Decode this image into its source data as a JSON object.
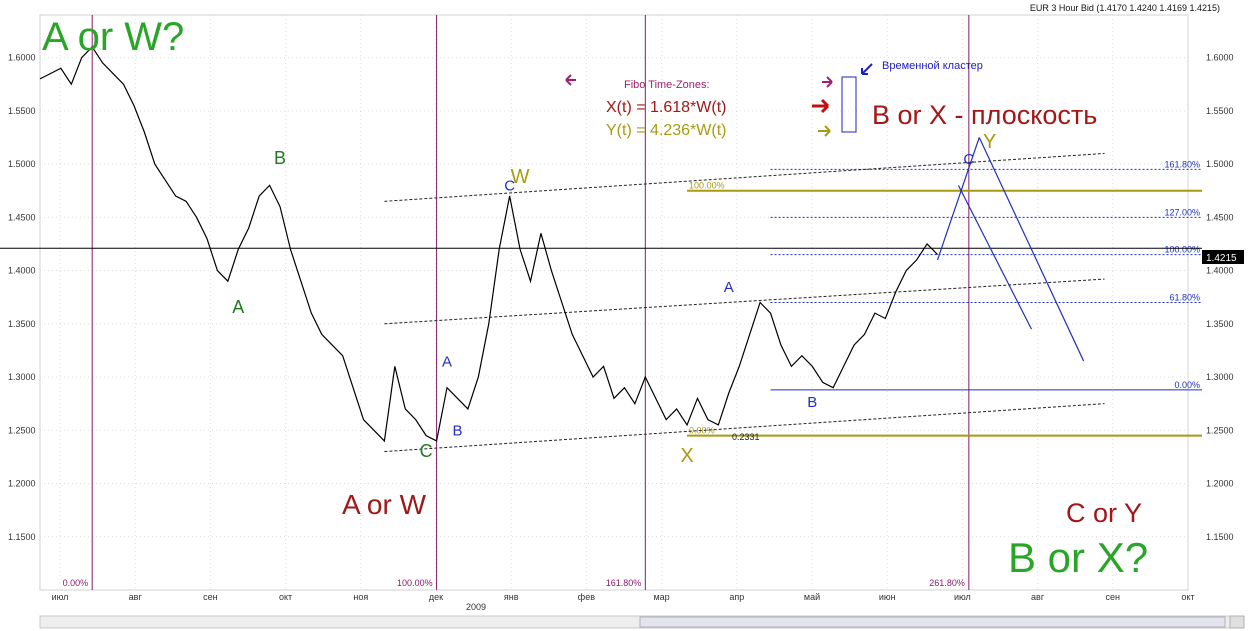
{
  "header": {
    "title": "EUR 3 Hour Bid (1.4170 1.4240 1.4169 1.4215)"
  },
  "chart_data": {
    "type": "line",
    "ylim": [
      1.1,
      1.64
    ],
    "y_ticks": [
      "1.1500",
      "1.2000",
      "1.2500",
      "1.3000",
      "1.3500",
      "1.4000",
      "1.4500",
      "1.5000",
      "1.5500",
      "1.6000"
    ],
    "y_tick_values": [
      1.15,
      1.2,
      1.25,
      1.3,
      1.35,
      1.4,
      1.45,
      1.5,
      1.55,
      1.6
    ],
    "x_months": [
      "июл",
      "авг",
      "сен",
      "окт",
      "ноя",
      "дек",
      "янв",
      "фев",
      "мар",
      "апр",
      "май",
      "июн",
      "июл",
      "авг",
      "сен",
      "окт"
    ],
    "x_year_label": "2009",
    "last_price": "1.4215",
    "price_series": [
      [
        0,
        1.58
      ],
      [
        2,
        1.59
      ],
      [
        3,
        1.575
      ],
      [
        4,
        1.6
      ],
      [
        5,
        1.61
      ],
      [
        6,
        1.595
      ],
      [
        7,
        1.585
      ],
      [
        8,
        1.575
      ],
      [
        9,
        1.555
      ],
      [
        10,
        1.53
      ],
      [
        11,
        1.5
      ],
      [
        12,
        1.485
      ],
      [
        13,
        1.47
      ],
      [
        14,
        1.465
      ],
      [
        15,
        1.45
      ],
      [
        16,
        1.43
      ],
      [
        17,
        1.4
      ],
      [
        18,
        1.39
      ],
      [
        19,
        1.42
      ],
      [
        20,
        1.44
      ],
      [
        21,
        1.47
      ],
      [
        22,
        1.48
      ],
      [
        23,
        1.46
      ],
      [
        24,
        1.42
      ],
      [
        25,
        1.39
      ],
      [
        26,
        1.36
      ],
      [
        27,
        1.34
      ],
      [
        28,
        1.33
      ],
      [
        29,
        1.32
      ],
      [
        30,
        1.29
      ],
      [
        31,
        1.26
      ],
      [
        32,
        1.25
      ],
      [
        33,
        1.24
      ],
      [
        34,
        1.31
      ],
      [
        35,
        1.27
      ],
      [
        36,
        1.26
      ],
      [
        37,
        1.245
      ],
      [
        38,
        1.24
      ],
      [
        39,
        1.29
      ],
      [
        40,
        1.28
      ],
      [
        41,
        1.27
      ],
      [
        42,
        1.3
      ],
      [
        43,
        1.35
      ],
      [
        44,
        1.42
      ],
      [
        45,
        1.47
      ],
      [
        46,
        1.42
      ],
      [
        47,
        1.39
      ],
      [
        48,
        1.435
      ],
      [
        49,
        1.4
      ],
      [
        50,
        1.37
      ],
      [
        51,
        1.34
      ],
      [
        52,
        1.32
      ],
      [
        53,
        1.3
      ],
      [
        54,
        1.31
      ],
      [
        55,
        1.28
      ],
      [
        56,
        1.29
      ],
      [
        57,
        1.275
      ],
      [
        58,
        1.3
      ],
      [
        59,
        1.28
      ],
      [
        60,
        1.26
      ],
      [
        61,
        1.27
      ],
      [
        62,
        1.255
      ],
      [
        63,
        1.28
      ],
      [
        64,
        1.26
      ],
      [
        65,
        1.255
      ],
      [
        66,
        1.285
      ],
      [
        67,
        1.31
      ],
      [
        68,
        1.34
      ],
      [
        69,
        1.37
      ],
      [
        70,
        1.36
      ],
      [
        71,
        1.33
      ],
      [
        72,
        1.31
      ],
      [
        73,
        1.32
      ],
      [
        74,
        1.31
      ],
      [
        75,
        1.295
      ],
      [
        76,
        1.29
      ],
      [
        77,
        1.31
      ],
      [
        78,
        1.33
      ],
      [
        79,
        1.34
      ],
      [
        80,
        1.36
      ],
      [
        81,
        1.355
      ],
      [
        82,
        1.38
      ],
      [
        83,
        1.4
      ],
      [
        84,
        1.41
      ],
      [
        85,
        1.425
      ],
      [
        86,
        1.415
      ]
    ],
    "projection_lines": [
      [
        [
          86,
          1.41
        ],
        [
          90,
          1.525
        ]
      ],
      [
        [
          88,
          1.48
        ],
        [
          95,
          1.345
        ]
      ],
      [
        [
          90,
          1.525
        ],
        [
          100,
          1.315
        ]
      ]
    ],
    "fib_levels_price": [
      {
        "label": "161.80%",
        "value": 1.495
      },
      {
        "label": "127.00%",
        "value": 1.45
      },
      {
        "label": "100.00%",
        "value": 1.415
      },
      {
        "label": "61.80%",
        "value": 1.37
      },
      {
        "label": "0.00%",
        "value": 1.288
      }
    ],
    "gold_levels": [
      {
        "label": "100.00%",
        "value": 1.475
      },
      {
        "label": "0.00%",
        "value": 1.245
      }
    ],
    "black_horizontal": 1.421,
    "time_zones": [
      {
        "label": "0.00%",
        "x": 5
      },
      {
        "label": "100.00%",
        "x": 38
      },
      {
        "label": "161.80%",
        "x": 58
      },
      {
        "label": "261.80%",
        "x": 89
      }
    ],
    "wave_labels_green": [
      {
        "text": "B",
        "x": 23,
        "y": 1.5
      },
      {
        "text": "A",
        "x": 19,
        "y": 1.36
      },
      {
        "text": "C",
        "x": 37,
        "y": 1.225
      }
    ],
    "wave_labels_blue": [
      {
        "text": "C",
        "x": 45,
        "y": 1.475
      },
      {
        "text": "A",
        "x": 39,
        "y": 1.31
      },
      {
        "text": "B",
        "x": 40,
        "y": 1.245
      },
      {
        "text": "A",
        "x": 66,
        "y": 1.38
      },
      {
        "text": "B",
        "x": 74,
        "y": 1.272
      },
      {
        "text": "C",
        "x": 89,
        "y": 1.5
      }
    ],
    "wave_labels_gold": [
      {
        "text": "W",
        "x": 46,
        "y": 1.482
      },
      {
        "text": "X",
        "x": 62,
        "y": 1.22
      },
      {
        "text": "Y",
        "x": 91,
        "y": 1.515
      }
    ],
    "small_label": "0.2331",
    "annotations": {
      "top_left": "A or W?",
      "mid_bottom": "A or W",
      "right_mid": "B or X - плоскость",
      "bottom_right_small": "C or Y",
      "bottom_right_big": "B or X?",
      "fibo_title": "Fibo Time-Zones:",
      "fibo_x": "X(t) = 1.618*W(t)",
      "fibo_y": "Y(t) = 4.236*W(t)",
      "cluster": "Временной кластер"
    }
  }
}
